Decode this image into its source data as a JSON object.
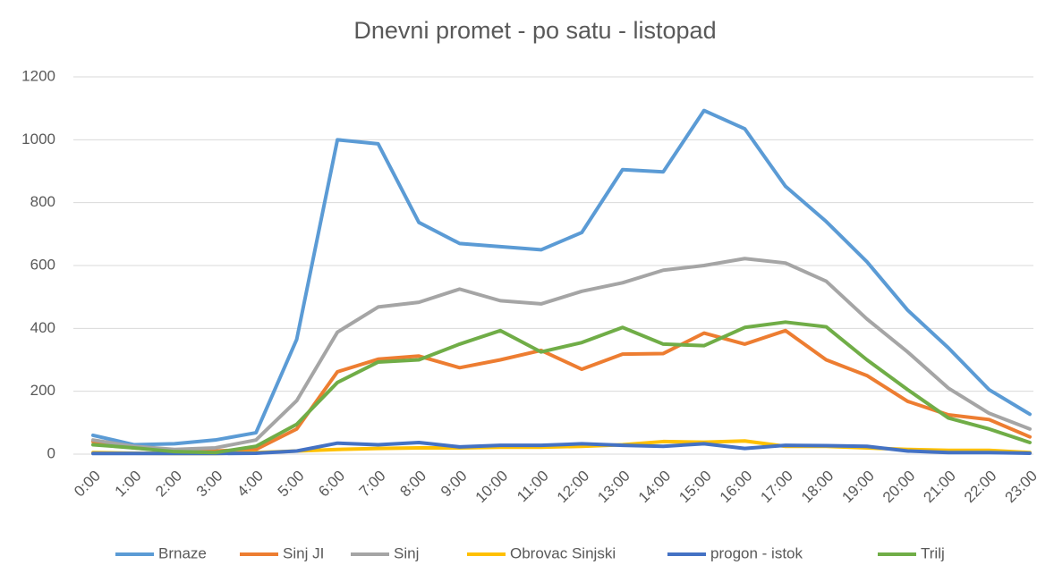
{
  "chart_data": {
    "type": "line",
    "title": "Dnevni promet - po satu - listopad",
    "categories": [
      "0:00",
      "1:00",
      "2:00",
      "3:00",
      "4:00",
      "5:00",
      "6:00",
      "7:00",
      "8:00",
      "9:00",
      "10:00",
      "11:00",
      "12:00",
      "13:00",
      "14:00",
      "15:00",
      "16:00",
      "17:00",
      "18:00",
      "19:00",
      "20:00",
      "21:00",
      "22:00",
      "23:00"
    ],
    "series": [
      {
        "name": "Brnaze",
        "color": "#5b9bd5",
        "values": [
          60,
          30,
          33,
          45,
          68,
          365,
          1000,
          987,
          737,
          670,
          660,
          650,
          705,
          905,
          898,
          1093,
          1035,
          852,
          740,
          612,
          458,
          338,
          205,
          127
        ]
      },
      {
        "name": "Sinj JI",
        "color": "#ed7d31",
        "values": [
          40,
          20,
          10,
          10,
          15,
          80,
          262,
          302,
          312,
          275,
          300,
          330,
          270,
          318,
          320,
          385,
          350,
          393,
          300,
          250,
          168,
          125,
          110,
          55
        ]
      },
      {
        "name": "Sinj",
        "color": "#a5a5a5",
        "values": [
          45,
          25,
          15,
          20,
          45,
          170,
          388,
          468,
          483,
          525,
          488,
          478,
          518,
          545,
          585,
          600,
          622,
          608,
          550,
          430,
          325,
          210,
          130,
          80
        ]
      },
      {
        "name": "Obrovac Sinjski",
        "color": "#ffc000",
        "values": [
          5,
          3,
          2,
          2,
          5,
          10,
          15,
          18,
          20,
          20,
          22,
          22,
          25,
          30,
          40,
          38,
          42,
          25,
          25,
          20,
          15,
          12,
          12,
          5
        ]
      },
      {
        "name": "progon - istok",
        "color": "#4472c4",
        "values": [
          2,
          2,
          2,
          2,
          3,
          10,
          35,
          30,
          37,
          23,
          28,
          28,
          33,
          28,
          25,
          33,
          18,
          28,
          27,
          25,
          10,
          5,
          5,
          3
        ]
      },
      {
        "name": "Trilj",
        "color": "#70ad47",
        "values": [
          30,
          20,
          8,
          5,
          25,
          95,
          228,
          293,
          300,
          350,
          393,
          325,
          355,
          403,
          350,
          345,
          403,
          420,
          405,
          300,
          205,
          115,
          80,
          37
        ]
      }
    ],
    "ylim": [
      0,
      1200
    ],
    "yticks": [
      0,
      200,
      400,
      600,
      800,
      1000,
      1200
    ],
    "grid": true,
    "legend": "bottom"
  }
}
